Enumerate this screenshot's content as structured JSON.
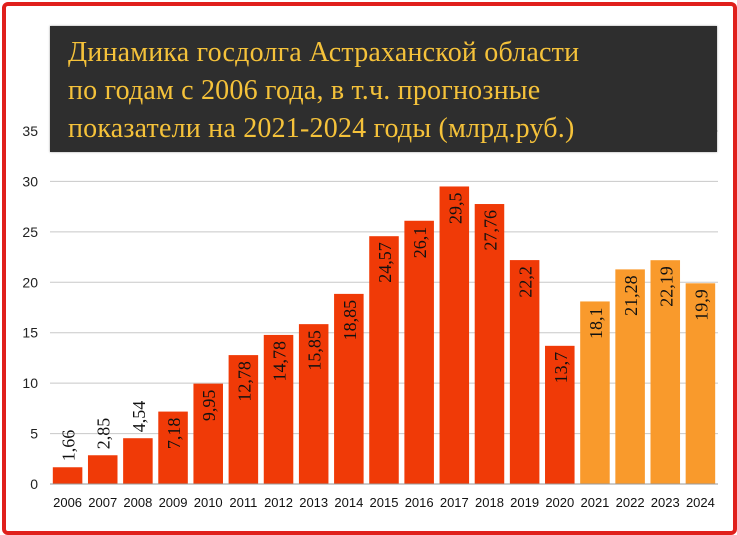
{
  "chart_data": {
    "type": "bar",
    "title_lines": [
      "Динамика госдолга Астраханской области",
      "по годам с 2006 года, в т.ч. прогнозные",
      "показатели на 2021-2024 годы (млрд.руб.)"
    ],
    "categories": [
      "2006",
      "2007",
      "2008",
      "2009",
      "2010",
      "2011",
      "2012",
      "2013",
      "2014",
      "2015",
      "2016",
      "2017",
      "2018",
      "2019",
      "2020",
      "2021",
      "2022",
      "2023",
      "2024"
    ],
    "values": [
      1.66,
      2.85,
      4.54,
      7.18,
      9.95,
      12.78,
      14.78,
      15.85,
      18.85,
      24.57,
      26.1,
      29.5,
      27.76,
      22.2,
      13.7,
      18.1,
      21.28,
      22.19,
      19.9
    ],
    "value_labels": [
      "1,66",
      "2,85",
      "4,54",
      "7,18",
      "9,95",
      "12,78",
      "14,78",
      "15,85",
      "18,85",
      "24,57",
      "26,1",
      "29,5",
      "27,76",
      "22,2",
      "13,7",
      "18,1",
      "21,28",
      "22,19",
      "19,9"
    ],
    "forecast_from_index": 15,
    "colors": {
      "actual": "#f03a07",
      "forecast": "#f99a2c",
      "grid": "#c8c8c8",
      "frame": "#e0201c",
      "title_bg": "#2e2e2e",
      "title_text": "#f5c23a"
    },
    "ylim": [
      0,
      35
    ],
    "yticks": [
      0,
      5,
      10,
      15,
      20,
      25,
      30,
      35
    ],
    "grid": true,
    "xlabel": "",
    "ylabel": ""
  }
}
